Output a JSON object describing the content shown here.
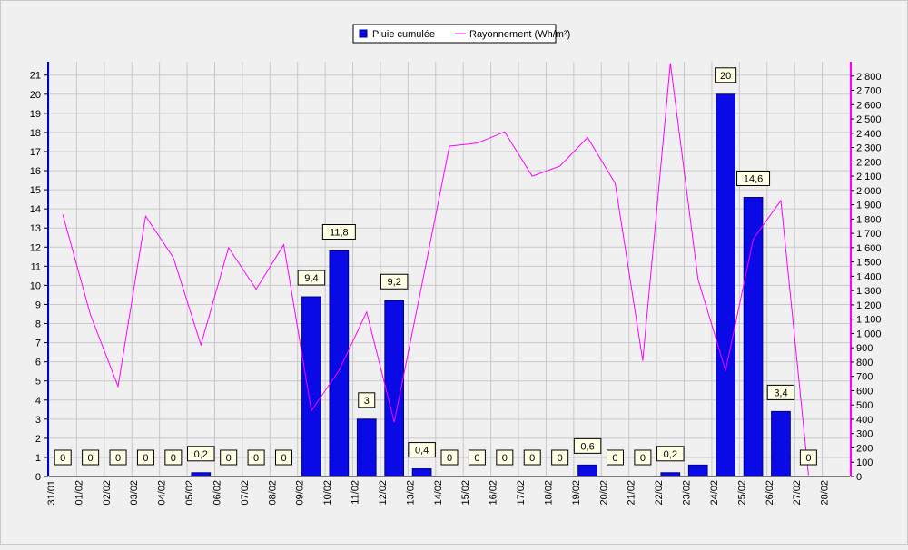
{
  "colors": {
    "background": "#f0f0f0",
    "plot_background": "#f0f0f0",
    "grid": "#c8c8c8",
    "bar_fill": "#0a0ae6",
    "bar_stroke": "#000080",
    "line": "#ff00ff",
    "left_axis": "#0000cc",
    "right_axis": "#ff00ff",
    "label_bg": "#ffffe6"
  },
  "chart_data": {
    "type": "bar",
    "title": "",
    "xlabel": "",
    "ylabel": "",
    "grid": true,
    "legend_position": "top-center",
    "categories": [
      "31/01",
      "01/02",
      "02/02",
      "03/02",
      "04/02",
      "05/02",
      "06/02",
      "07/02",
      "08/02",
      "09/02",
      "10/02",
      "11/02",
      "12/02",
      "13/02",
      "14/02",
      "15/02",
      "16/02",
      "17/02",
      "18/02",
      "19/02",
      "20/02",
      "21/02",
      "22/02",
      "23/02",
      "24/02",
      "25/02",
      "26/02",
      "27/02",
      "28/02"
    ],
    "ylim": [
      0,
      21.7
    ],
    "y_ticks": [
      "0",
      "1",
      "2",
      "3",
      "4",
      "5",
      "6",
      "7",
      "8",
      "9",
      "10",
      "11",
      "12",
      "13",
      "14",
      "15",
      "16",
      "17",
      "18",
      "19",
      "20",
      "21"
    ],
    "y2lim": [
      0,
      2900
    ],
    "y2_ticks": [
      "0",
      "100",
      "200",
      "300",
      "400",
      "500",
      "600",
      "700",
      "800",
      "900",
      "1 000",
      "1 100",
      "1 200",
      "1 300",
      "1 400",
      "1 500",
      "1 600",
      "1 700",
      "1 800",
      "1 900",
      "2 000",
      "2 100",
      "2 200",
      "2 300",
      "2 400",
      "2 500",
      "2 600",
      "2 700",
      "2 800"
    ],
    "series": [
      {
        "name": "Pluie cumulée",
        "type": "bar",
        "axis": "left",
        "values": [
          0,
          0,
          0,
          0,
          0,
          0.2,
          0,
          0,
          0,
          9.4,
          11.8,
          3,
          9.2,
          0.4,
          0,
          0,
          0,
          0,
          0,
          0.6,
          0,
          0,
          0.2,
          0.6,
          20,
          14.6,
          3.4,
          0,
          null
        ],
        "labels": [
          "0",
          "0",
          "0",
          "0",
          "0",
          "0,2",
          "0",
          "0",
          "0",
          "9,4",
          "11,8",
          "3",
          "9,2",
          "0,4",
          "0",
          "0",
          "0",
          "0",
          "0",
          "0,6",
          "0",
          "0",
          "0,2",
          "",
          "20",
          "14,6",
          "3,4",
          "0",
          ""
        ]
      },
      {
        "name": "Rayonnement (Wh/m²)",
        "type": "line",
        "axis": "right",
        "values": [
          1830,
          1130,
          630,
          1820,
          1530,
          920,
          1600,
          1310,
          1620,
          460,
          740,
          1150,
          380,
          1340,
          2310,
          2330,
          2410,
          2100,
          2170,
          2370,
          2050,
          810,
          2890,
          1380,
          740,
          1660,
          1930,
          10,
          null
        ]
      }
    ]
  }
}
